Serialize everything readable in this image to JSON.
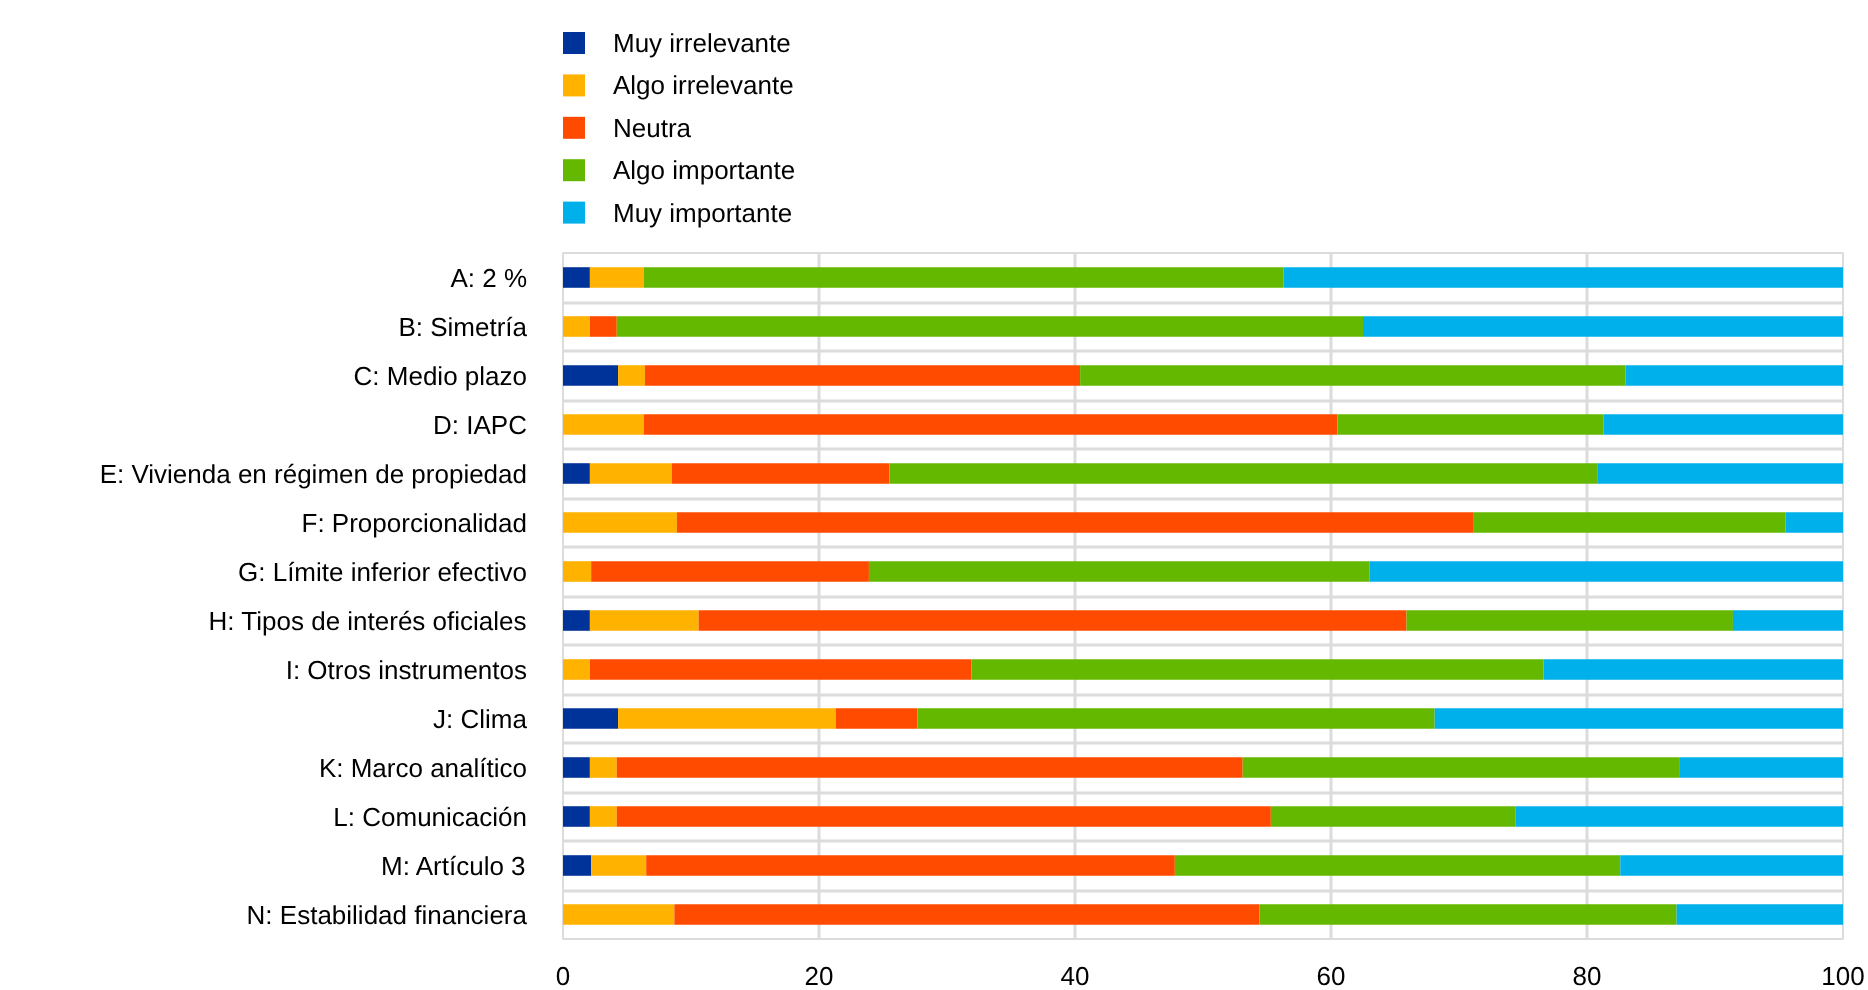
{
  "chart_data": {
    "type": "bar",
    "orientation": "horizontal",
    "stacked": true,
    "categories": [
      "A: 2 %",
      "B: Simetría",
      "C: Medio plazo",
      "D: IAPC",
      "E: Vivienda en régimen de propiedad",
      "F: Proporcionalidad",
      "G: Límite inferior efectivo",
      "H: Tipos de interés oficiales",
      "I: Otros instrumentos",
      "J: Clima",
      "K: Marco analítico",
      "L: Comunicación",
      "M: Artículo 3",
      "N: Estabilidad financiera"
    ],
    "series": [
      {
        "name": "Muy irrelevante",
        "color": "#003399",
        "values": [
          2.1,
          0,
          4.3,
          0,
          2.1,
          0,
          0,
          2.1,
          0,
          4.3,
          2.1,
          2.1,
          2.2,
          0
        ]
      },
      {
        "name": "Algo irrelevante",
        "color": "#ffb200",
        "values": [
          4.2,
          2.1,
          2.1,
          6.3,
          6.4,
          8.9,
          2.2,
          8.5,
          2.1,
          17.0,
          2.1,
          2.1,
          4.3,
          8.7
        ]
      },
      {
        "name": "Neutra",
        "color": "#ff4b00",
        "values": [
          0,
          2.1,
          34.0,
          54.2,
          17.0,
          62.2,
          21.7,
          55.3,
          29.8,
          6.4,
          48.9,
          51.1,
          41.3,
          45.7
        ]
      },
      {
        "name": "Algo importante",
        "color": "#64b800",
        "values": [
          50.0,
          58.3,
          42.6,
          20.8,
          55.3,
          24.4,
          39.1,
          25.5,
          44.7,
          40.4,
          34.1,
          19.1,
          34.8,
          32.6
        ]
      },
      {
        "name": "Muy importante",
        "color": "#00b0ea",
        "values": [
          43.7,
          37.5,
          17.0,
          18.7,
          19.2,
          4.5,
          37.0,
          8.6,
          23.4,
          31.9,
          12.8,
          25.6,
          17.4,
          13.0
        ]
      }
    ],
    "xlim": [
      0,
      100
    ],
    "xticks": [
      0,
      20,
      40,
      60,
      80,
      100
    ],
    "grid": true,
    "legend": "top"
  }
}
